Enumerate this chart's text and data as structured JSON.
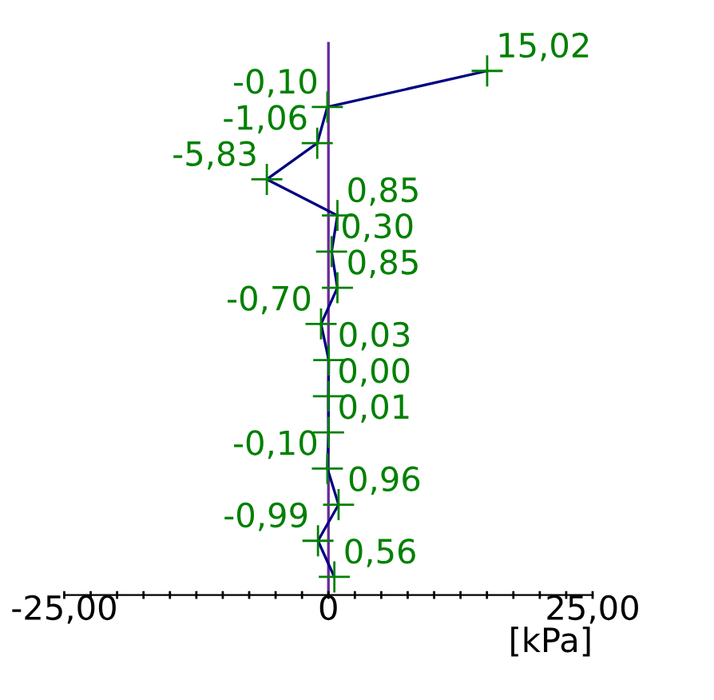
{
  "chart_data": {
    "type": "line",
    "orientation": "horizontal",
    "xlabel": "[kPa]",
    "categories": [
      null,
      null,
      null,
      null,
      null,
      null,
      null,
      null,
      null,
      null,
      null,
      null,
      null,
      null,
      null
    ],
    "series": [
      {
        "color": "#000080",
        "values": [
          15.02,
          -0.1,
          -1.06,
          -5.83,
          0.85,
          0.3,
          0.85,
          -0.7,
          0.03,
          0.0,
          0.01,
          -0.1,
          0.96,
          -0.99,
          0.56
        ],
        "value_labels": [
          "15,02",
          "-0,10",
          "-1,06",
          "-5,83",
          "0,85",
          "0,30",
          "0,85",
          "-0,70",
          "0,03",
          "0,00",
          "0,01",
          "-0,10",
          "0,96",
          "-0,99",
          "0,56"
        ]
      }
    ],
    "marker": "cross",
    "xlim": [
      -25,
      25
    ],
    "xticks": [
      {
        "value": -25,
        "label": "-25,00"
      },
      {
        "value": -22.5,
        "label": null
      },
      {
        "value": -20,
        "label": null
      },
      {
        "value": -17.5,
        "label": null
      },
      {
        "value": -15,
        "label": null
      },
      {
        "value": -12.5,
        "label": null
      },
      {
        "value": -10,
        "label": null
      },
      {
        "value": -7.5,
        "label": null
      },
      {
        "value": -5,
        "label": null
      },
      {
        "value": -2.5,
        "label": null
      },
      0,
      {
        "value": 2.5,
        "label": null
      },
      {
        "value": 5,
        "label": null
      },
      {
        "value": 7.5,
        "label": null
      },
      {
        "value": 10,
        "label": null
      },
      {
        "value": 12.5,
        "label": null
      },
      {
        "value": 15,
        "label": null
      },
      {
        "value": 17.5,
        "label": null
      },
      {
        "value": 20,
        "label": null
      },
      {
        "value": 22.5,
        "label": null
      },
      {
        "value": 25,
        "label": "25,00"
      }
    ],
    "ref_lines": [
      {
        "axis": "x",
        "value": 0,
        "color": "#6a2a9a"
      }
    ],
    "grid": false,
    "legend": false
  }
}
